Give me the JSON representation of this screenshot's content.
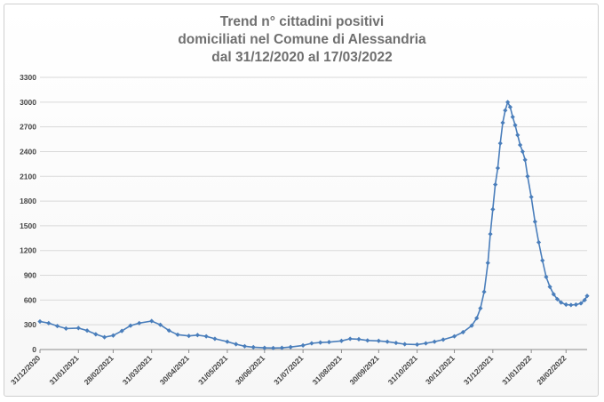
{
  "chart_data": {
    "type": "line",
    "title_lines": [
      "Trend n° cittadini positivi",
      "domiciliati nel Comune di Alessandria",
      "dal 31/12/2020 al 17/03/2022"
    ],
    "xlabel": "",
    "ylabel": "",
    "ylim": [
      0,
      3300
    ],
    "yticks": [
      0,
      300,
      600,
      900,
      1200,
      1500,
      1800,
      2100,
      2400,
      2700,
      3000,
      3300
    ],
    "xlim": [
      "2020-12-31",
      "2022-03-17"
    ],
    "xticks": [
      {
        "date": "2020-12-31",
        "label": "31/12/2020"
      },
      {
        "date": "2021-01-31",
        "label": "31/01/2021"
      },
      {
        "date": "2021-02-28",
        "label": "28/02/2021"
      },
      {
        "date": "2021-03-31",
        "label": "31/03/2021"
      },
      {
        "date": "2021-04-30",
        "label": "30/04/2021"
      },
      {
        "date": "2021-05-31",
        "label": "31/05/2021"
      },
      {
        "date": "2021-06-30",
        "label": "30/06/2021"
      },
      {
        "date": "2021-07-31",
        "label": "31/07/2021"
      },
      {
        "date": "2021-08-31",
        "label": "31/08/2021"
      },
      {
        "date": "2021-09-30",
        "label": "30/09/2021"
      },
      {
        "date": "2021-10-31",
        "label": "31/10/2021"
      },
      {
        "date": "2021-11-30",
        "label": "30/11/2021"
      },
      {
        "date": "2021-12-31",
        "label": "31/12/2021"
      },
      {
        "date": "2022-01-31",
        "label": "31/01/2022"
      },
      {
        "date": "2022-02-28",
        "label": "28/02/2022"
      }
    ],
    "grid": true,
    "legend": "none",
    "series": [
      {
        "color": "#4a7ebb",
        "points": [
          [
            "2020-12-31",
            340
          ],
          [
            "2021-01-07",
            320
          ],
          [
            "2021-01-14",
            285
          ],
          [
            "2021-01-21",
            255
          ],
          [
            "2021-01-31",
            260
          ],
          [
            "2021-02-07",
            230
          ],
          [
            "2021-02-14",
            185
          ],
          [
            "2021-02-21",
            150
          ],
          [
            "2021-02-28",
            170
          ],
          [
            "2021-03-07",
            225
          ],
          [
            "2021-03-14",
            290
          ],
          [
            "2021-03-21",
            320
          ],
          [
            "2021-03-31",
            345
          ],
          [
            "2021-04-07",
            300
          ],
          [
            "2021-04-14",
            230
          ],
          [
            "2021-04-21",
            180
          ],
          [
            "2021-04-30",
            165
          ],
          [
            "2021-05-07",
            175
          ],
          [
            "2021-05-14",
            160
          ],
          [
            "2021-05-21",
            130
          ],
          [
            "2021-05-31",
            95
          ],
          [
            "2021-06-07",
            65
          ],
          [
            "2021-06-14",
            40
          ],
          [
            "2021-06-21",
            28
          ],
          [
            "2021-06-30",
            20
          ],
          [
            "2021-07-07",
            18
          ],
          [
            "2021-07-14",
            20
          ],
          [
            "2021-07-21",
            30
          ],
          [
            "2021-07-31",
            50
          ],
          [
            "2021-08-07",
            75
          ],
          [
            "2021-08-14",
            85
          ],
          [
            "2021-08-21",
            90
          ],
          [
            "2021-08-31",
            105
          ],
          [
            "2021-09-07",
            130
          ],
          [
            "2021-09-14",
            125
          ],
          [
            "2021-09-21",
            110
          ],
          [
            "2021-09-30",
            105
          ],
          [
            "2021-10-07",
            95
          ],
          [
            "2021-10-14",
            80
          ],
          [
            "2021-10-21",
            65
          ],
          [
            "2021-10-31",
            60
          ],
          [
            "2021-11-07",
            75
          ],
          [
            "2021-11-14",
            95
          ],
          [
            "2021-11-21",
            120
          ],
          [
            "2021-11-30",
            160
          ],
          [
            "2021-12-07",
            210
          ],
          [
            "2021-12-14",
            290
          ],
          [
            "2021-12-18",
            380
          ],
          [
            "2021-12-21",
            500
          ],
          [
            "2021-12-24",
            700
          ],
          [
            "2021-12-27",
            1050
          ],
          [
            "2021-12-29",
            1400
          ],
          [
            "2021-12-31",
            1700
          ],
          [
            "2022-01-02",
            2000
          ],
          [
            "2022-01-04",
            2200
          ],
          [
            "2022-01-06",
            2500
          ],
          [
            "2022-01-08",
            2750
          ],
          [
            "2022-01-10",
            2900
          ],
          [
            "2022-01-12",
            3000
          ],
          [
            "2022-01-14",
            2940
          ],
          [
            "2022-01-16",
            2820
          ],
          [
            "2022-01-18",
            2720
          ],
          [
            "2022-01-20",
            2600
          ],
          [
            "2022-01-22",
            2480
          ],
          [
            "2022-01-24",
            2400
          ],
          [
            "2022-01-26",
            2300
          ],
          [
            "2022-01-28",
            2100
          ],
          [
            "2022-01-31",
            1850
          ],
          [
            "2022-02-03",
            1550
          ],
          [
            "2022-02-06",
            1300
          ],
          [
            "2022-02-09",
            1080
          ],
          [
            "2022-02-12",
            880
          ],
          [
            "2022-02-15",
            760
          ],
          [
            "2022-02-18",
            670
          ],
          [
            "2022-02-21",
            610
          ],
          [
            "2022-02-24",
            570
          ],
          [
            "2022-02-28",
            545
          ],
          [
            "2022-03-04",
            540
          ],
          [
            "2022-03-08",
            545
          ],
          [
            "2022-03-12",
            560
          ],
          [
            "2022-03-15",
            600
          ],
          [
            "2022-03-17",
            650
          ]
        ]
      }
    ]
  }
}
